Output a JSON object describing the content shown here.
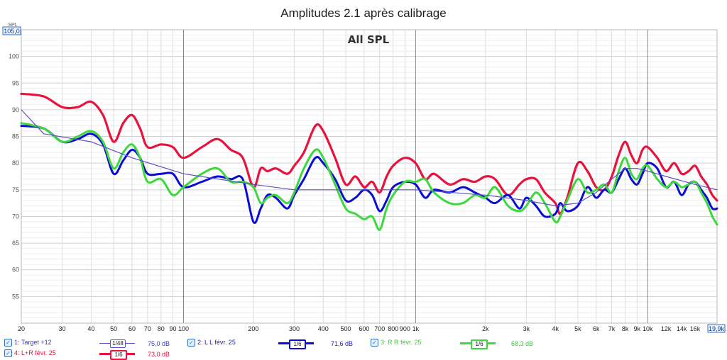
{
  "chart_data": {
    "type": "line",
    "title": "Amplitudes 2.1 après calibrage",
    "inner_title": "All SPL",
    "y_axis_unit": "SPL",
    "x_scale": "log",
    "xlim": [
      20,
      19900
    ],
    "ylim": [
      50,
      105
    ],
    "y_top_label": "105,0",
    "x_end_label": "19,9k",
    "yticks": [
      "55",
      "60",
      "65",
      "70",
      "75",
      "80",
      "85",
      "90",
      "95",
      "100"
    ],
    "yvalues": [
      55,
      60,
      65,
      70,
      75,
      80,
      85,
      90,
      95,
      100
    ],
    "xtick_labels": [
      "20",
      "30",
      "40",
      "50",
      "60",
      "70",
      "80",
      "90",
      "100",
      "200",
      "300",
      "400",
      "500",
      "600",
      "700",
      "800",
      "900",
      "1k",
      "2k",
      "3k",
      "4k",
      "5k",
      "6k",
      "7k",
      "8k",
      "9k",
      "10k",
      "12k",
      "14k",
      "16k"
    ],
    "xtick_values": [
      20,
      30,
      40,
      50,
      60,
      70,
      80,
      90,
      100,
      200,
      300,
      400,
      500,
      600,
      700,
      800,
      900,
      1000,
      2000,
      3000,
      4000,
      5000,
      6000,
      7000,
      8000,
      9000,
      10000,
      12000,
      14000,
      16000
    ],
    "grid": true,
    "series": [
      {
        "name": "1: Target +12",
        "color": "#5b4fc4",
        "smoothing": "1/48",
        "level": "75,0 dB",
        "x": [
          20,
          25,
          40,
          60,
          100,
          200,
          300,
          500,
          1000,
          2000,
          3000,
          4000,
          5000,
          6000,
          7000,
          8000,
          9000,
          10000,
          12000,
          16000,
          19900
        ],
        "y": [
          90,
          85.5,
          84,
          81,
          78,
          76,
          75,
          75,
          75,
          74,
          73,
          72,
          72.5,
          74.5,
          77,
          79,
          79,
          78.5,
          77.5,
          76,
          75
        ]
      },
      {
        "name": "2: L L févr. 25",
        "color": "#0b0bd8",
        "smoothing": "1/6",
        "level": "71,6 dB",
        "x": [
          20,
          25,
          30,
          35,
          40,
          45,
          50,
          55,
          60,
          65,
          70,
          80,
          90,
          100,
          120,
          140,
          160,
          180,
          200,
          215,
          230,
          250,
          280,
          300,
          330,
          370,
          400,
          450,
          500,
          550,
          600,
          650,
          700,
          750,
          800,
          900,
          1000,
          1100,
          1200,
          1400,
          1600,
          1800,
          2000,
          2200,
          2500,
          2800,
          3000,
          3300,
          3600,
          4000,
          4200,
          4500,
          5000,
          5500,
          6000,
          6500,
          7000,
          7500,
          8000,
          8500,
          9000,
          9500,
          10000,
          11000,
          12000,
          13000,
          14000,
          15000,
          16000,
          17000,
          18000,
          19000,
          19900
        ],
        "y": [
          87,
          86.5,
          84,
          84.5,
          85.5,
          83.5,
          78,
          80.5,
          82.5,
          81,
          78,
          78,
          78,
          75.5,
          76.5,
          77.5,
          77,
          77,
          69,
          71.5,
          74,
          73.5,
          71.5,
          74,
          77,
          81,
          80,
          77,
          73,
          73.5,
          75,
          74,
          71,
          73,
          75.5,
          76.5,
          76,
          73.5,
          75,
          74.5,
          75.5,
          74.5,
          73.5,
          72.5,
          74,
          71.5,
          73.5,
          72,
          70,
          70.5,
          72.5,
          71,
          72,
          75.5,
          73.5,
          75,
          74.5,
          77,
          79,
          77,
          76,
          78,
          80,
          79,
          75.5,
          76.5,
          74,
          76,
          76.5,
          75,
          73.5,
          71.5,
          71.5
        ]
      },
      {
        "name": "3: R R févr. 25",
        "color": "#3cd83c",
        "smoothing": "1/6",
        "level": "68,3 dB",
        "x": [
          20,
          25,
          30,
          35,
          40,
          45,
          50,
          55,
          60,
          65,
          70,
          80,
          90,
          100,
          120,
          140,
          160,
          180,
          200,
          215,
          230,
          250,
          280,
          300,
          330,
          370,
          400,
          450,
          500,
          550,
          600,
          650,
          700,
          750,
          800,
          900,
          1000,
          1100,
          1200,
          1400,
          1600,
          1800,
          2000,
          2200,
          2500,
          2800,
          3000,
          3300,
          3600,
          4000,
          4200,
          4500,
          5000,
          5500,
          6000,
          6500,
          7000,
          7500,
          8000,
          8500,
          9000,
          9500,
          10000,
          11000,
          12000,
          13000,
          14000,
          15000,
          16000,
          17000,
          18000,
          19000,
          19900
        ],
        "y": [
          87.5,
          86.5,
          84,
          85,
          86,
          84,
          79,
          82,
          83.5,
          81,
          76.5,
          77,
          74,
          75.5,
          78,
          79,
          76.5,
          76.5,
          75.5,
          72.5,
          73.5,
          74,
          72.5,
          74.5,
          79,
          82.5,
          81,
          76,
          71.5,
          70.5,
          69.5,
          70,
          67.5,
          71.5,
          74,
          76.5,
          76.5,
          77,
          74.5,
          72.5,
          72.5,
          74,
          73.5,
          75.5,
          72,
          71,
          72,
          74.5,
          72.5,
          69,
          70,
          73,
          77,
          74.5,
          75,
          76,
          74.5,
          78.5,
          81,
          78,
          77,
          79,
          79.5,
          77,
          75.5,
          76.5,
          75.5,
          76,
          76.5,
          74.5,
          72.5,
          70,
          68.5
        ]
      },
      {
        "name": "4: L+R févr. 25",
        "color": "#e8123c",
        "smoothing": "1/6",
        "level": "73,0 dB",
        "x": [
          20,
          25,
          30,
          35,
          40,
          45,
          50,
          55,
          60,
          65,
          70,
          80,
          90,
          100,
          120,
          140,
          160,
          180,
          200,
          215,
          230,
          250,
          280,
          300,
          330,
          370,
          400,
          450,
          500,
          550,
          600,
          650,
          700,
          750,
          800,
          900,
          1000,
          1100,
          1200,
          1400,
          1600,
          1800,
          2000,
          2200,
          2500,
          2800,
          3000,
          3300,
          3600,
          4000,
          4200,
          4500,
          5000,
          5500,
          6000,
          6500,
          7000,
          7500,
          8000,
          8500,
          9000,
          9500,
          10000,
          11000,
          12000,
          13000,
          14000,
          15000,
          16000,
          17000,
          18000,
          19000,
          19900
        ],
        "y": [
          93,
          92.5,
          90.5,
          90.5,
          91.5,
          89,
          84,
          87.5,
          89,
          86.5,
          83,
          83.5,
          83,
          81,
          83,
          84.5,
          82.5,
          81,
          75.5,
          79,
          78.5,
          79,
          78,
          79.5,
          82,
          87,
          86,
          81,
          76,
          77.5,
          75.5,
          76.5,
          74.5,
          77.5,
          79.5,
          81,
          80,
          77,
          78,
          76,
          77,
          76.5,
          77.5,
          77,
          74,
          76,
          77,
          77,
          74.5,
          72.5,
          70.5,
          73.5,
          80,
          78.5,
          75.5,
          75,
          77.5,
          81.5,
          84,
          81.5,
          80,
          82.5,
          83,
          81,
          78.5,
          80,
          78,
          78.5,
          79.5,
          77.5,
          76,
          74,
          73
        ]
      }
    ]
  }
}
